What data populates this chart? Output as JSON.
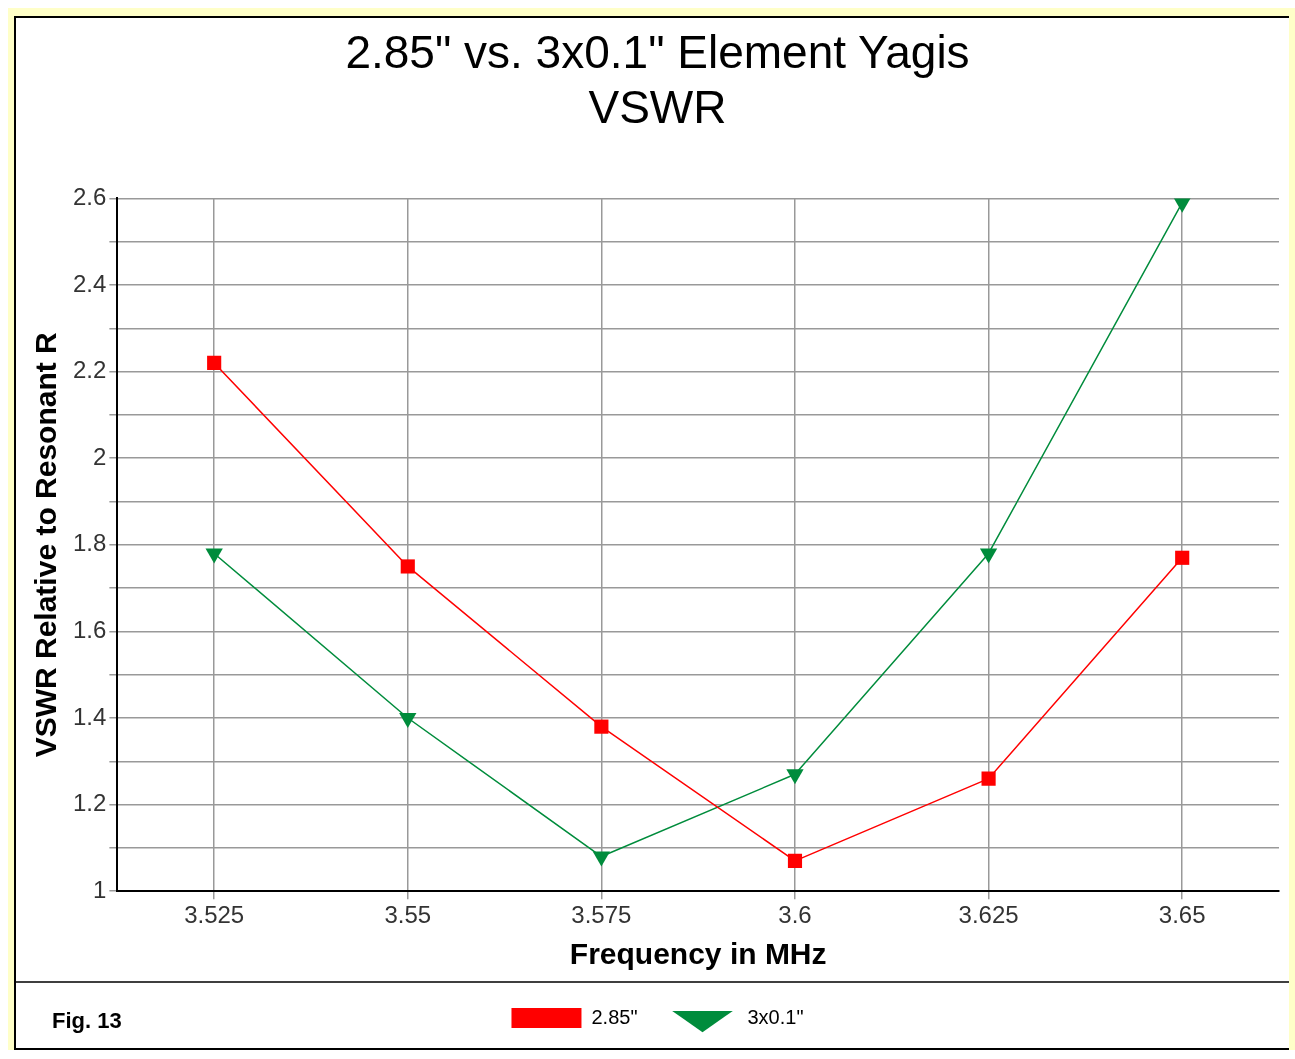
{
  "chart_data": {
    "type": "line",
    "title": "2.85\" vs. 3x0.1\" Element Yagis",
    "subtitle": "VSWR",
    "xlabel": "Frequency in MHz",
    "ylabel": "VSWR Relative to Resonant R",
    "categories": [
      "3.525",
      "3.55",
      "3.575",
      "3.6",
      "3.625",
      "3.65"
    ],
    "series": [
      {
        "name": "2.85\"",
        "color": "#ff0000",
        "marker": "square",
        "values": [
          2.22,
          1.75,
          1.38,
          1.07,
          1.26,
          1.77
        ]
      },
      {
        "name": "3x0.1\"",
        "color": "#008c3c",
        "marker": "triangle",
        "values": [
          1.78,
          1.4,
          1.08,
          1.27,
          1.78,
          2.59
        ]
      }
    ],
    "ylim": [
      1,
      2.6
    ],
    "yticks": [
      1,
      {
        "value": 1.1,
        "label": null
      },
      1.2,
      {
        "value": 1.3,
        "label": null
      },
      1.4,
      {
        "value": 1.5,
        "label": null
      },
      1.6,
      {
        "value": 1.7,
        "label": null
      },
      1.8,
      {
        "value": 1.9,
        "label": null
      },
      2,
      {
        "value": 2.1,
        "label": null
      },
      2.2,
      {
        "value": 2.3,
        "label": null
      },
      2.4,
      {
        "value": 2.5,
        "label": null
      },
      2.6
    ],
    "grid": true,
    "legend": "bottom",
    "line_style": "solid",
    "annotations": [
      "Fig. 13"
    ]
  }
}
